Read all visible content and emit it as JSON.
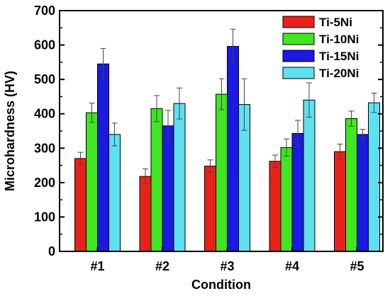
{
  "chart_data": {
    "type": "bar",
    "title": "",
    "xlabel": "Condition",
    "ylabel": "Microhardness (HV)",
    "ylim": [
      0,
      700
    ],
    "yticks": [
      "0",
      "100",
      "200",
      "300",
      "400",
      "500",
      "600",
      "700"
    ],
    "categories": [
      "#1",
      "#2",
      "#3",
      "#4",
      "#5"
    ],
    "series": [
      {
        "name": "Ti-5Ni",
        "color": "#e8221a",
        "values": [
          270,
          218,
          248,
          262,
          290
        ],
        "errors": [
          18,
          22,
          18,
          18,
          22
        ]
      },
      {
        "name": "Ti-10Ni",
        "color": "#3fe621",
        "values": [
          403,
          415,
          457,
          302,
          386
        ],
        "errors": [
          28,
          38,
          45,
          25,
          22
        ]
      },
      {
        "name": "Ti-15Ni",
        "color": "#1a1ae0",
        "values": [
          545,
          365,
          596,
          343,
          340
        ],
        "errors": [
          45,
          45,
          50,
          38,
          15
        ]
      },
      {
        "name": "Ti-20Ni",
        "color": "#5fe0ef",
        "values": [
          340,
          430,
          427,
          440,
          432
        ],
        "errors": [
          33,
          45,
          75,
          50,
          28
        ]
      }
    ],
    "legend_position": "top-right",
    "grid": false,
    "error_bars": true
  }
}
